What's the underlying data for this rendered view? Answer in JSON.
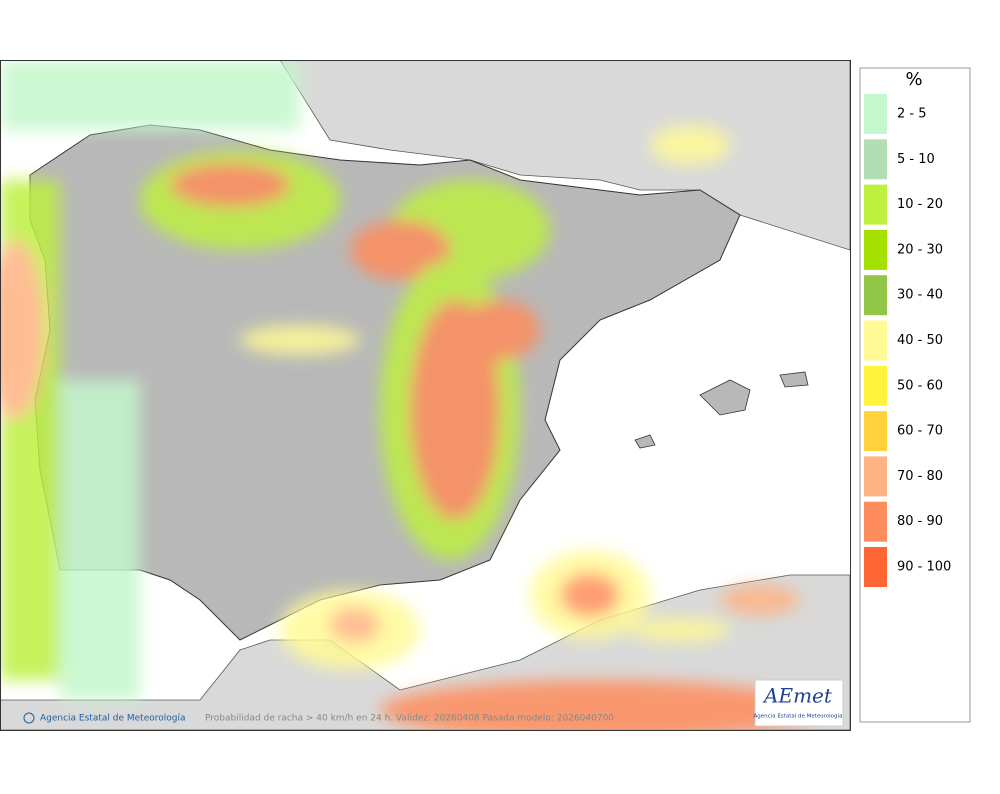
{
  "map": {
    "footer": {
      "credit": "Agencia Estatal de Meteorología",
      "caption": "Probabilidad de racha > 40 km/h en 24 h. Validez: 20260408 Pasada modelo: 2026040700"
    },
    "logo": {
      "name": "AEmet",
      "subtitle": "Agencia Estatal de Meteorología"
    },
    "legend": {
      "title": "%",
      "items": [
        {
          "label": "2 - 5",
          "color": "#c4f7cb"
        },
        {
          "label": "5 - 10",
          "color": "#b2deb4"
        },
        {
          "label": "10 - 20",
          "color": "#bdf03f"
        },
        {
          "label": "20 - 30",
          "color": "#a4e000"
        },
        {
          "label": "30 - 40",
          "color": "#92c646"
        },
        {
          "label": "40 - 50",
          "color": "#fffa96"
        },
        {
          "label": "50 - 60",
          "color": "#fff33c"
        },
        {
          "label": "60 - 70",
          "color": "#ffd23c"
        },
        {
          "label": "70 - 80",
          "color": "#ffb282"
        },
        {
          "label": "80 - 90",
          "color": "#ff8c5c"
        },
        {
          "label": "90 - 100",
          "color": "#ff6634"
        }
      ]
    }
  }
}
